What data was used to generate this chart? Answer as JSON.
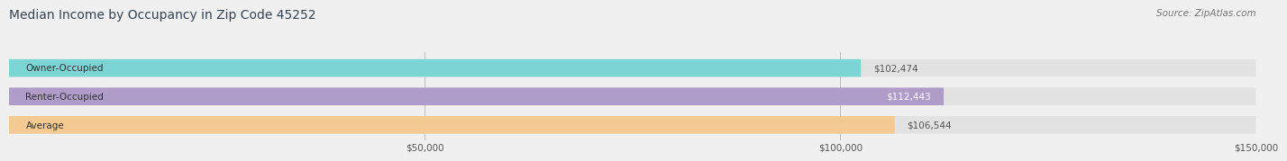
{
  "title": "Median Income by Occupancy in Zip Code 45252",
  "source": "Source: ZipAtlas.com",
  "categories": [
    "Owner-Occupied",
    "Renter-Occupied",
    "Average"
  ],
  "values": [
    102474,
    112443,
    106544
  ],
  "bar_colors": [
    "#7DD4D4",
    "#B09CC8",
    "#F5C992"
  ],
  "value_labels": [
    "$102,474",
    "$112,443",
    "$106,544"
  ],
  "value_label_colors": [
    "#555555",
    "#ffffff",
    "#555555"
  ],
  "xlim": [
    0,
    150000
  ],
  "xticks": [
    0,
    50000,
    100000,
    150000
  ],
  "xticklabels": [
    "",
    "$50,000",
    "$100,000",
    "$150,000"
  ],
  "background_color": "#f0f0f0",
  "bar_bg_color": "#e2e2e2",
  "title_color": "#334455",
  "title_fontsize": 10,
  "source_fontsize": 7.5,
  "label_fontsize": 7.5,
  "tick_fontsize": 7.5
}
